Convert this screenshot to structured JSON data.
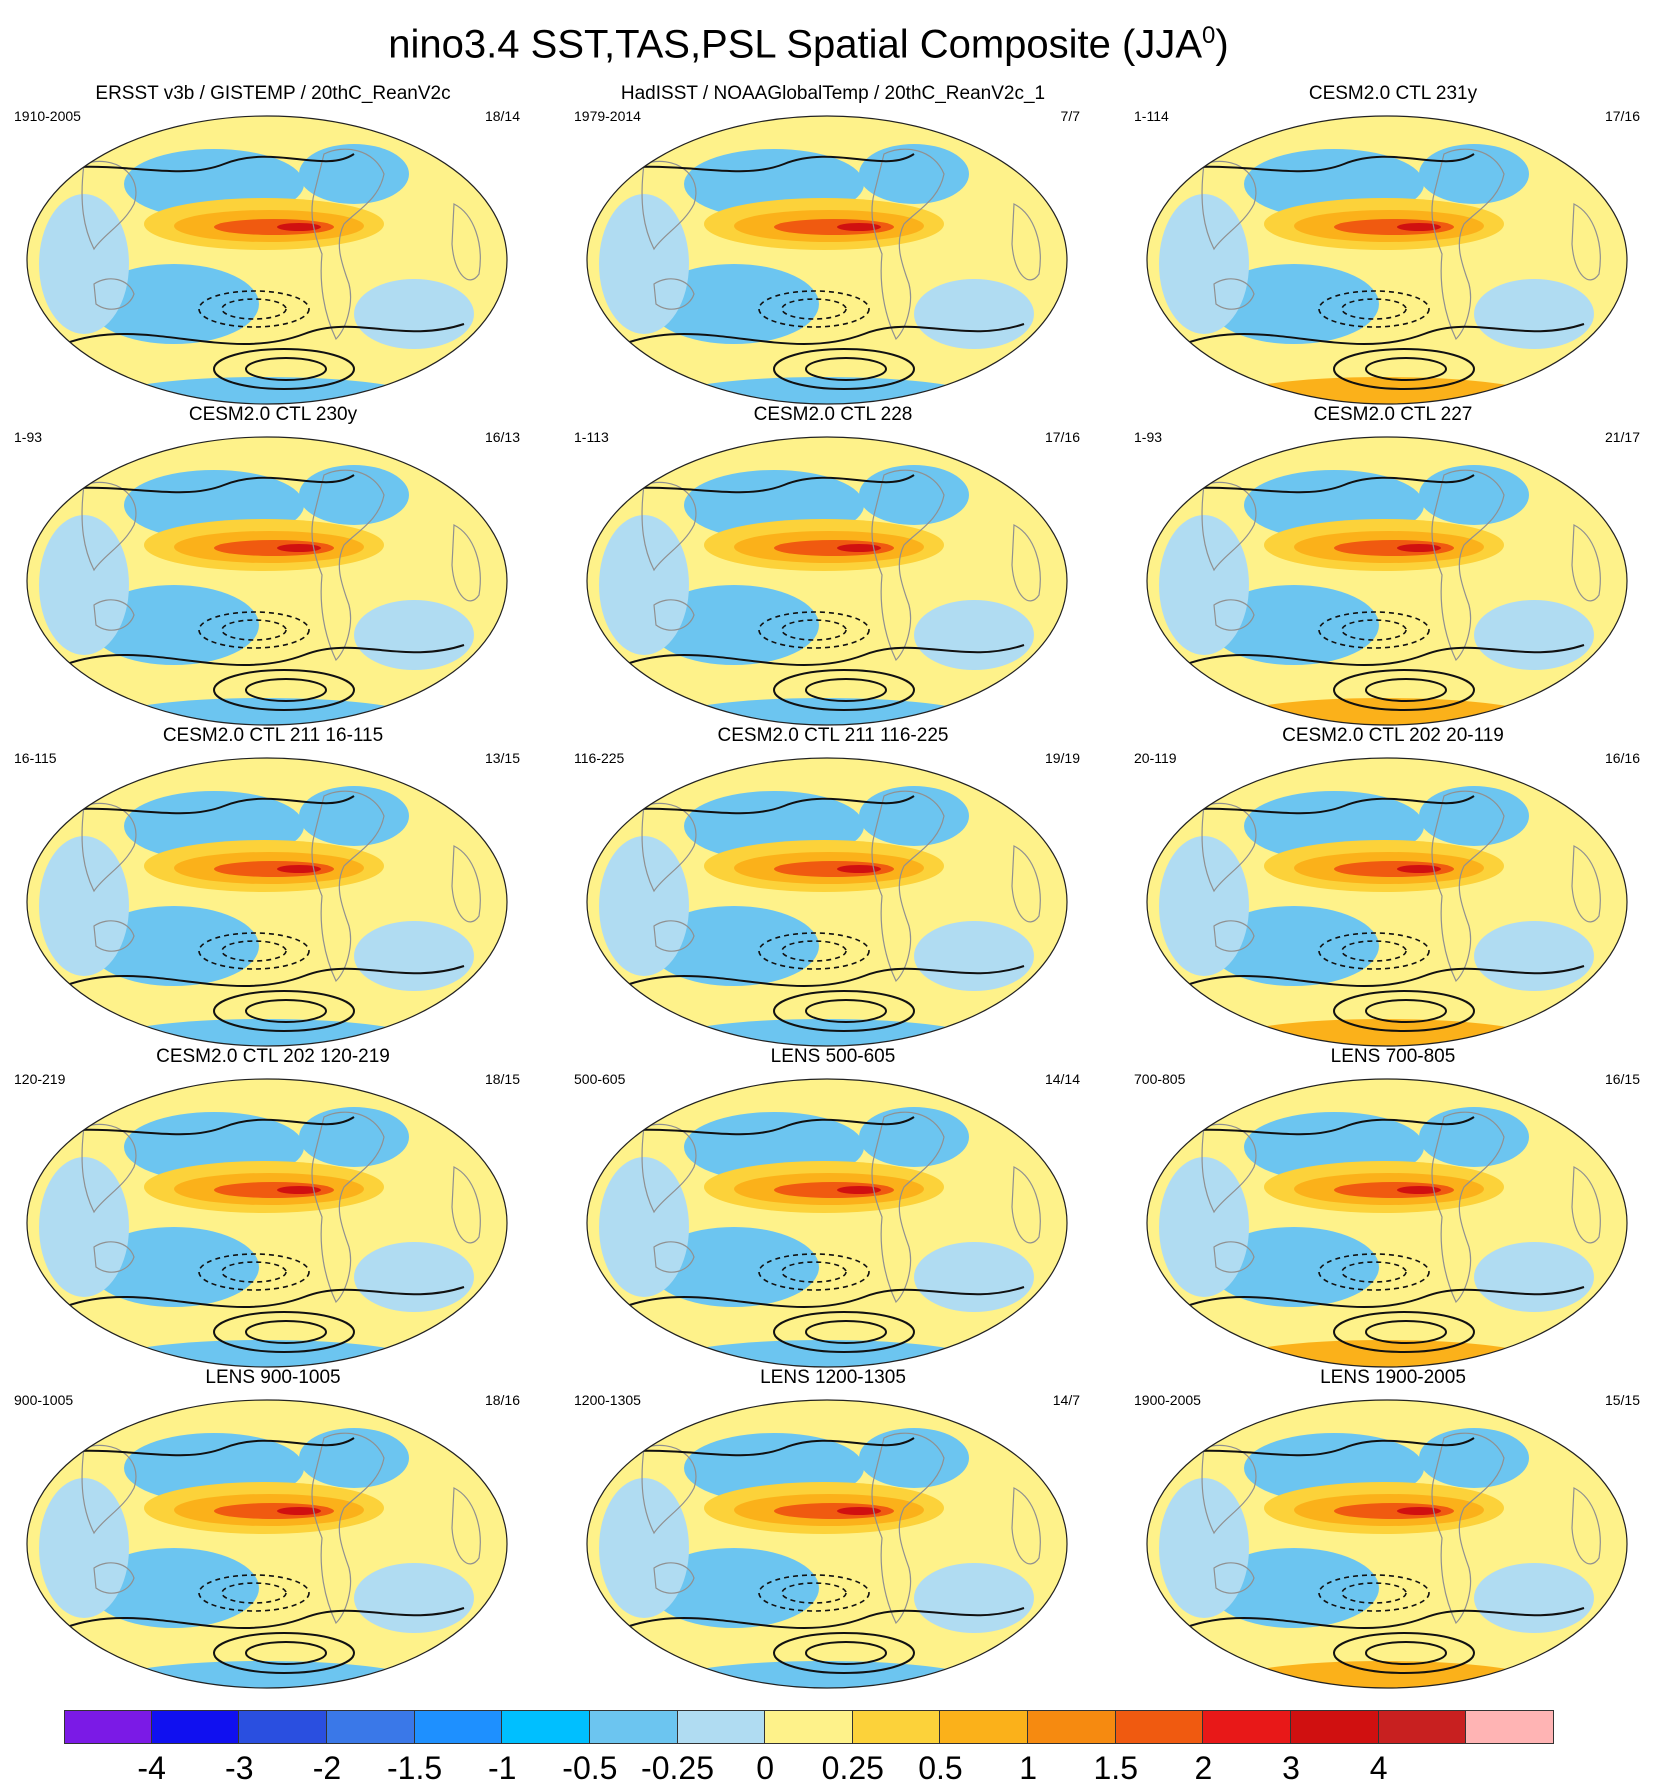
{
  "title": {
    "main": "nino3.4 SST,TAS,PSL Spatial Composite (JJA",
    "sup": "0",
    "close": ")"
  },
  "panels": [
    {
      "title": "ERSST v3b / GISTEMP / 20thC_ReanV2c",
      "years": "1910-2005",
      "count": "18/14"
    },
    {
      "title": "HadISST / NOAAGlobalTemp / 20thC_ReanV2c_1",
      "years": "1979-2014",
      "count": "7/7"
    },
    {
      "title": "CESM2.0 CTL 231y",
      "years": "1-114",
      "count": "17/16"
    },
    {
      "title": "CESM2.0 CTL 230y",
      "years": "1-93",
      "count": "16/13"
    },
    {
      "title": "CESM2.0 CTL 228",
      "years": "1-113",
      "count": "17/16"
    },
    {
      "title": "CESM2.0 CTL 227",
      "years": "1-93",
      "count": "21/17"
    },
    {
      "title": "CESM2.0 CTL 211 16-115",
      "years": "16-115",
      "count": "13/15"
    },
    {
      "title": "CESM2.0 CTL 211 116-225",
      "years": "116-225",
      "count": "19/19"
    },
    {
      "title": "CESM2.0 CTL 202 20-119",
      "years": "20-119",
      "count": "16/16"
    },
    {
      "title": "CESM2.0 CTL 202 120-219",
      "years": "120-219",
      "count": "18/15"
    },
    {
      "title": "LENS 500-605",
      "years": "500-605",
      "count": "14/14"
    },
    {
      "title": "LENS 700-805",
      "years": "700-805",
      "count": "16/15"
    },
    {
      "title": "LENS 900-1005",
      "years": "900-1005",
      "count": "18/16"
    },
    {
      "title": "LENS 1200-1305",
      "years": "1200-1305",
      "count": "14/7"
    },
    {
      "title": "LENS 1900-2005",
      "years": "1900-2005",
      "count": "15/15"
    }
  ],
  "colorbar": {
    "colors": [
      "#7b1ae6",
      "#1010f0",
      "#2a4fe0",
      "#3a78e8",
      "#1e90ff",
      "#00bfff",
      "#6cc5f0",
      "#b0dcf2",
      "#fef28a",
      "#fcd23a",
      "#fbb11a",
      "#f68a10",
      "#f05a10",
      "#e81818",
      "#d01010",
      "#c82020",
      "#ffb4b4"
    ],
    "ticks": [
      "-4",
      "-3",
      "-2",
      "-1.5",
      "-1",
      "-0.5",
      "-0.25",
      "0",
      "0.25",
      "0.5",
      "1",
      "1.5",
      "2",
      "3",
      "4"
    ]
  },
  "map_colors": {
    "land_outline": "#909090",
    "contour": "#111111",
    "ocean_neutral": "#fef28a"
  }
}
